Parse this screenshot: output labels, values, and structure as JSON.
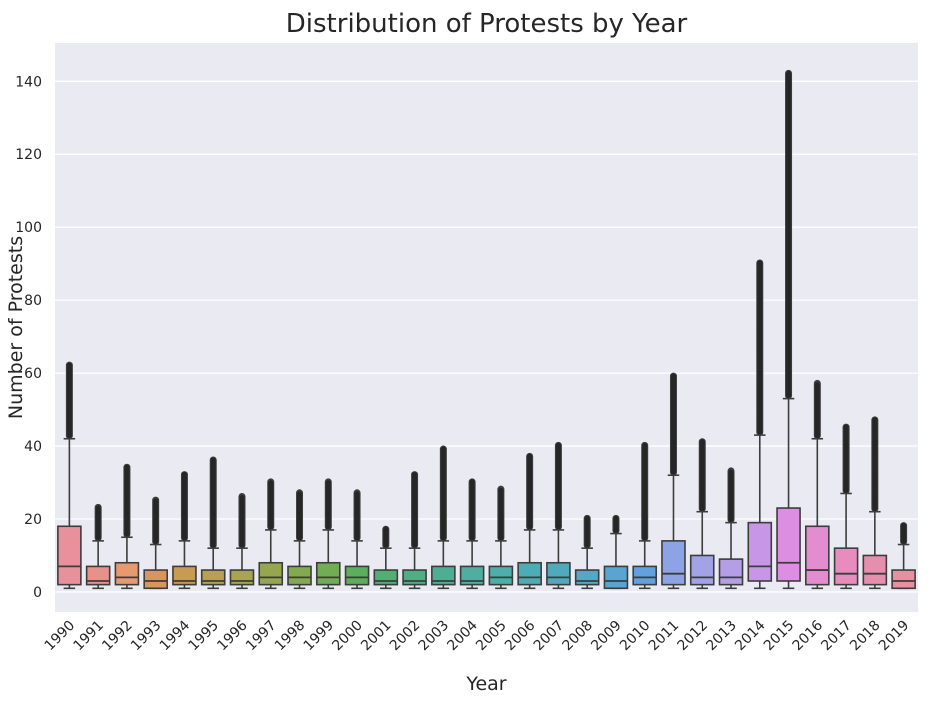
{
  "chart_data": {
    "type": "boxplot",
    "title": "Distribution of Protests by Year",
    "xlabel": "Year",
    "ylabel": "Number of Protests",
    "ylim": [
      -5.5,
      150.5
    ],
    "yticks": [
      0,
      20,
      40,
      60,
      80,
      100,
      120,
      140
    ],
    "grid": true,
    "categories": [
      "1990",
      "1991",
      "1992",
      "1993",
      "1994",
      "1995",
      "1996",
      "1997",
      "1998",
      "1999",
      "2000",
      "2001",
      "2002",
      "2003",
      "2004",
      "2005",
      "2006",
      "2007",
      "2008",
      "2009",
      "2010",
      "2011",
      "2012",
      "2013",
      "2014",
      "2015",
      "2016",
      "2017",
      "2018",
      "2019"
    ],
    "series": [
      {
        "x": "1990",
        "min": 1,
        "q1": 2,
        "median": 7,
        "q3": 18,
        "whisker_high": 42,
        "outlier_max": 63,
        "color": "#e8909c"
      },
      {
        "x": "1991",
        "min": 1,
        "q1": 2,
        "median": 3,
        "q3": 7,
        "whisker_high": 14,
        "outlier_max": 24,
        "color": "#e8908a"
      },
      {
        "x": "1992",
        "min": 1,
        "q1": 2,
        "median": 4,
        "q3": 8,
        "whisker_high": 15,
        "outlier_max": 35,
        "color": "#e69a70"
      },
      {
        "x": "1993",
        "min": 1,
        "q1": 1,
        "median": 3,
        "q3": 6,
        "whisker_high": 13,
        "outlier_max": 26,
        "color": "#d9965a"
      },
      {
        "x": "1994",
        "min": 1,
        "q1": 2,
        "median": 3,
        "q3": 7,
        "whisker_high": 14,
        "outlier_max": 33,
        "color": "#c89a52"
      },
      {
        "x": "1995",
        "min": 1,
        "q1": 2,
        "median": 3,
        "q3": 6,
        "whisker_high": 12,
        "outlier_max": 37,
        "color": "#b8a052"
      },
      {
        "x": "1996",
        "min": 1,
        "q1": 2,
        "median": 3,
        "q3": 6,
        "whisker_high": 12,
        "outlier_max": 27,
        "color": "#a8a450"
      },
      {
        "x": "1997",
        "min": 1,
        "q1": 2,
        "median": 4,
        "q3": 8,
        "whisker_high": 17,
        "outlier_max": 31,
        "color": "#96a64e"
      },
      {
        "x": "1998",
        "min": 1,
        "q1": 2,
        "median": 4,
        "q3": 7,
        "whisker_high": 14,
        "outlier_max": 28,
        "color": "#84aa50"
      },
      {
        "x": "1999",
        "min": 1,
        "q1": 2,
        "median": 4,
        "q3": 8,
        "whisker_high": 17,
        "outlier_max": 31,
        "color": "#72ac54"
      },
      {
        "x": "2000",
        "min": 1,
        "q1": 2,
        "median": 4,
        "q3": 7,
        "whisker_high": 14,
        "outlier_max": 28,
        "color": "#5cae5c"
      },
      {
        "x": "2001",
        "min": 1,
        "q1": 2,
        "median": 3,
        "q3": 6,
        "whisker_high": 12,
        "outlier_max": 18,
        "color": "#52ae72"
      },
      {
        "x": "2002",
        "min": 1,
        "q1": 2,
        "median": 3,
        "q3": 6,
        "whisker_high": 12,
        "outlier_max": 33,
        "color": "#50ae84"
      },
      {
        "x": "2003",
        "min": 1,
        "q1": 2,
        "median": 3,
        "q3": 7,
        "whisker_high": 14,
        "outlier_max": 40,
        "color": "#4eae94"
      },
      {
        "x": "2004",
        "min": 1,
        "q1": 2,
        "median": 3,
        "q3": 7,
        "whisker_high": 14,
        "outlier_max": 31,
        "color": "#4eaea0"
      },
      {
        "x": "2005",
        "min": 1,
        "q1": 2,
        "median": 4,
        "q3": 7,
        "whisker_high": 14,
        "outlier_max": 29,
        "color": "#4eaeaa"
      },
      {
        "x": "2006",
        "min": 1,
        "q1": 2,
        "median": 4,
        "q3": 8,
        "whisker_high": 17,
        "outlier_max": 38,
        "color": "#4eacb4"
      },
      {
        "x": "2007",
        "min": 1,
        "q1": 2,
        "median": 4,
        "q3": 8,
        "whisker_high": 17,
        "outlier_max": 41,
        "color": "#50aabc"
      },
      {
        "x": "2008",
        "min": 1,
        "q1": 2,
        "median": 3,
        "q3": 6,
        "whisker_high": 12,
        "outlier_max": 21,
        "color": "#52a8c6"
      },
      {
        "x": "2009",
        "min": 1,
        "q1": 1,
        "median": 3,
        "q3": 7,
        "whisker_high": 16,
        "outlier_max": 21,
        "color": "#58a4d2"
      },
      {
        "x": "2010",
        "min": 1,
        "q1": 2,
        "median": 4,
        "q3": 7,
        "whisker_high": 14,
        "outlier_max": 41,
        "color": "#62a0de"
      },
      {
        "x": "2011",
        "min": 1,
        "q1": 2,
        "median": 5,
        "q3": 14,
        "whisker_high": 32,
        "outlier_max": 60,
        "color": "#8ca4e6"
      },
      {
        "x": "2012",
        "min": 1,
        "q1": 2,
        "median": 4,
        "q3": 10,
        "whisker_high": 22,
        "outlier_max": 42,
        "color": "#a2a2e6"
      },
      {
        "x": "2013",
        "min": 1,
        "q1": 2,
        "median": 4,
        "q3": 9,
        "whisker_high": 19,
        "outlier_max": 34,
        "color": "#b49ee6"
      },
      {
        "x": "2014",
        "min": 1,
        "q1": 3,
        "median": 7,
        "q3": 19,
        "whisker_high": 43,
        "outlier_max": 91,
        "color": "#c896e6"
      },
      {
        "x": "2015",
        "min": 1,
        "q1": 3,
        "median": 8,
        "q3": 23,
        "whisker_high": 53,
        "outlier_max": 143,
        "color": "#dc8ee2"
      },
      {
        "x": "2016",
        "min": 1,
        "q1": 2,
        "median": 6,
        "q3": 18,
        "whisker_high": 42,
        "outlier_max": 58,
        "color": "#e48cd0"
      },
      {
        "x": "2017",
        "min": 1,
        "q1": 2,
        "median": 5,
        "q3": 12,
        "whisker_high": 27,
        "outlier_max": 46,
        "color": "#e68cbe"
      },
      {
        "x": "2018",
        "min": 1,
        "q1": 2,
        "median": 5,
        "q3": 10,
        "whisker_high": 22,
        "outlier_max": 48,
        "color": "#e68eae"
      },
      {
        "x": "2019",
        "min": 1,
        "q1": 1,
        "median": 3,
        "q3": 6,
        "whisker_high": 13,
        "outlier_max": 19,
        "color": "#e8909e"
      }
    ]
  }
}
